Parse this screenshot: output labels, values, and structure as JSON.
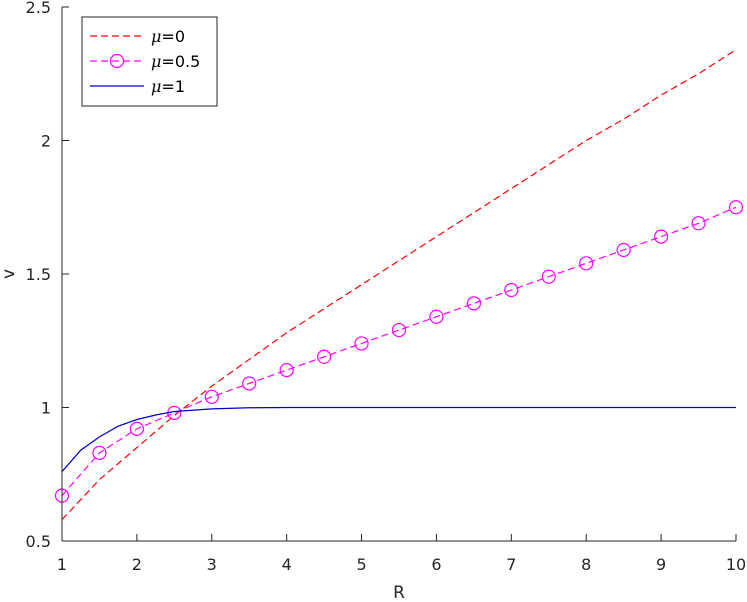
{
  "chart_data": {
    "type": "line",
    "xlabel": "R",
    "ylabel": "v",
    "xlim": [
      1,
      10
    ],
    "ylim": [
      0.5,
      2.5
    ],
    "xticks": [
      1,
      2,
      3,
      4,
      5,
      6,
      7,
      8,
      9,
      10
    ],
    "yticks": [
      0.5,
      1,
      1.5,
      2,
      2.5
    ],
    "grid": false,
    "legend_position": "top-left",
    "series": [
      {
        "name": "=0",
        "name_symbol": "μ",
        "color": "#ff0000",
        "line_style": "dashed",
        "marker": "none",
        "x": [
          1,
          1.5,
          2,
          2.5,
          3,
          3.5,
          4,
          4.5,
          5,
          5.5,
          6,
          6.5,
          7,
          7.5,
          8,
          8.5,
          9,
          9.5,
          10
        ],
        "y": [
          0.58,
          0.73,
          0.85,
          0.97,
          1.08,
          1.18,
          1.28,
          1.37,
          1.46,
          1.55,
          1.64,
          1.73,
          1.82,
          1.91,
          2.0,
          2.08,
          2.17,
          2.25,
          2.34
        ]
      },
      {
        "name": "=0.5",
        "name_symbol": "μ",
        "color": "#ff00ff",
        "line_style": "dashed",
        "marker": "circle",
        "x": [
          1,
          1.5,
          2,
          2.5,
          3,
          3.5,
          4,
          4.5,
          5,
          5.5,
          6,
          6.5,
          7,
          7.5,
          8,
          8.5,
          9,
          9.5,
          10
        ],
        "y": [
          0.67,
          0.83,
          0.92,
          0.98,
          1.04,
          1.09,
          1.14,
          1.19,
          1.24,
          1.29,
          1.34,
          1.39,
          1.44,
          1.49,
          1.54,
          1.59,
          1.64,
          1.69,
          1.75
        ]
      },
      {
        "name": "=1",
        "name_symbol": "μ",
        "color": "#0000cd",
        "line_style": "solid",
        "marker": "none",
        "x": [
          1,
          1.25,
          1.5,
          1.75,
          2,
          2.25,
          2.5,
          3,
          3.5,
          4,
          5,
          6,
          7,
          8,
          9,
          10
        ],
        "y": [
          0.76,
          0.84,
          0.89,
          0.93,
          0.955,
          0.972,
          0.985,
          0.995,
          0.999,
          1.0,
          1.0,
          1.0,
          1.0,
          1.0,
          1.0,
          1.0
        ]
      }
    ]
  }
}
